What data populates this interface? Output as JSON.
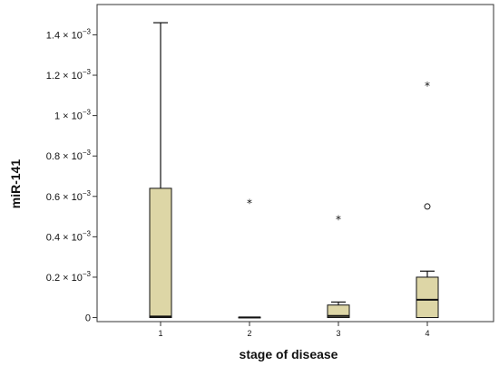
{
  "chart_data": {
    "type": "boxplot",
    "xlabel": "stage of disease",
    "ylabel": "miR-141",
    "categories": [
      "1",
      "2",
      "3",
      "4"
    ],
    "ylim": [
      -2e-05,
      0.00155
    ],
    "yticks": [
      0,
      0.0002,
      0.0004,
      0.0006,
      0.0008,
      0.001,
      0.0012,
      0.0014
    ],
    "ytick_labels": [
      {
        "prefix": "0",
        "exp": ""
      },
      {
        "prefix": "0.2 × 10",
        "exp": "−3"
      },
      {
        "prefix": "0.4 × 10",
        "exp": "−3"
      },
      {
        "prefix": "0.6 × 10",
        "exp": "−3"
      },
      {
        "prefix": "0.8 × 10",
        "exp": "−3"
      },
      {
        "prefix": "1 × 10",
        "exp": "−3"
      },
      {
        "prefix": "1.2 × 10",
        "exp": "−3"
      },
      {
        "prefix": "1.4 × 10",
        "exp": "−3"
      }
    ],
    "box_color": "#ddd6a6",
    "boxes": [
      {
        "category": "1",
        "min": 0.0,
        "q1": 0.0,
        "median": 5e-06,
        "q3": 0.00064,
        "max": 0.00146,
        "outliers": []
      },
      {
        "category": "2",
        "min": 0.0,
        "q1": 0.0,
        "median": 1e-06,
        "q3": 2e-06,
        "max": 2e-06,
        "outliers": [
          {
            "value": 0.00057,
            "marker": "*"
          }
        ]
      },
      {
        "category": "3",
        "min": 0.0,
        "q1": 0.0,
        "median": 8e-06,
        "q3": 6.2e-05,
        "max": 7.7e-05,
        "outliers": [
          {
            "value": 0.00049,
            "marker": "*"
          }
        ]
      },
      {
        "category": "4",
        "min": 0.0,
        "q1": 0.0,
        "median": 8.8e-05,
        "q3": 0.0002,
        "max": 0.00023,
        "outliers": [
          {
            "value": 0.00055,
            "marker": "o"
          },
          {
            "value": 0.00115,
            "marker": "*"
          }
        ]
      }
    ]
  }
}
